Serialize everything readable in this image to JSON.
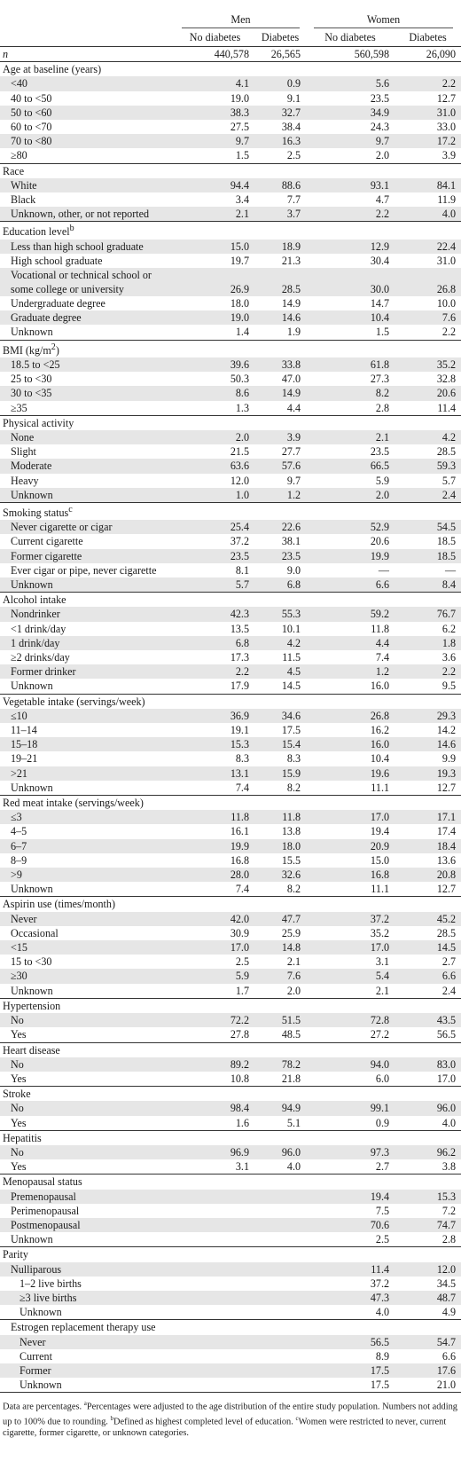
{
  "headers": {
    "groups": [
      "Men",
      "Women"
    ],
    "columns": [
      "No diabetes",
      "Diabetes",
      "No diabetes",
      "Diabetes"
    ]
  },
  "n_row": {
    "label": "n",
    "values": [
      "440,578",
      "26,565",
      "560,598",
      "26,090"
    ]
  },
  "sections": [
    {
      "title": "Age at baseline (years)",
      "sup": "",
      "rows": [
        {
          "label": "<40",
          "values": [
            "4.1",
            "0.9",
            "5.6",
            "2.2"
          ]
        },
        {
          "label": "40 to <50",
          "values": [
            "19.0",
            "9.1",
            "23.5",
            "12.7"
          ]
        },
        {
          "label": "50 to <60",
          "values": [
            "38.3",
            "32.7",
            "34.9",
            "31.0"
          ]
        },
        {
          "label": "60 to <70",
          "values": [
            "27.5",
            "38.4",
            "24.3",
            "33.0"
          ]
        },
        {
          "label": "70 to <80",
          "values": [
            "9.7",
            "16.3",
            "9.7",
            "17.2"
          ]
        },
        {
          "label": "≥80",
          "values": [
            "1.5",
            "2.5",
            "2.0",
            "3.9"
          ]
        }
      ]
    },
    {
      "title": "Race",
      "sup": "",
      "rows": [
        {
          "label": "White",
          "values": [
            "94.4",
            "88.6",
            "93.1",
            "84.1"
          ]
        },
        {
          "label": "Black",
          "values": [
            "3.4",
            "7.7",
            "4.7",
            "11.9"
          ]
        },
        {
          "label": "Unknown, other, or not reported",
          "values": [
            "2.1",
            "3.7",
            "2.2",
            "4.0"
          ]
        }
      ]
    },
    {
      "title": "Education level",
      "sup": "b",
      "rows": [
        {
          "label": "Less than high school graduate",
          "values": [
            "15.0",
            "18.9",
            "12.9",
            "22.4"
          ]
        },
        {
          "label": "High school graduate",
          "values": [
            "19.7",
            "21.3",
            "30.4",
            "31.0"
          ]
        },
        {
          "label": "Vocational or technical school or some college or university",
          "wrap": true,
          "values": [
            "26.9",
            "28.5",
            "30.0",
            "26.8"
          ]
        },
        {
          "label": "Undergraduate degree",
          "values": [
            "18.0",
            "14.9",
            "14.7",
            "10.0"
          ]
        },
        {
          "label": "Graduate degree",
          "values": [
            "19.0",
            "14.6",
            "10.4",
            "7.6"
          ]
        },
        {
          "label": "Unknown",
          "values": [
            "1.4",
            "1.9",
            "1.5",
            "2.2"
          ]
        }
      ]
    },
    {
      "title": "BMI (kg/m",
      "title_sup": "2",
      "title_end": ")",
      "sup": "",
      "rows": [
        {
          "label": "18.5 to <25",
          "values": [
            "39.6",
            "33.8",
            "61.8",
            "35.2"
          ]
        },
        {
          "label": "25 to <30",
          "values": [
            "50.3",
            "47.0",
            "27.3",
            "32.8"
          ]
        },
        {
          "label": "30 to <35",
          "values": [
            "8.6",
            "14.9",
            "8.2",
            "20.6"
          ]
        },
        {
          "label": "≥35",
          "values": [
            "1.3",
            "4.4",
            "2.8",
            "11.4"
          ]
        }
      ]
    },
    {
      "title": "Physical activity",
      "sup": "",
      "rows": [
        {
          "label": "None",
          "values": [
            "2.0",
            "3.9",
            "2.1",
            "4.2"
          ]
        },
        {
          "label": "Slight",
          "values": [
            "21.5",
            "27.7",
            "23.5",
            "28.5"
          ]
        },
        {
          "label": "Moderate",
          "values": [
            "63.6",
            "57.6",
            "66.5",
            "59.3"
          ]
        },
        {
          "label": "Heavy",
          "values": [
            "12.0",
            "9.7",
            "5.9",
            "5.7"
          ]
        },
        {
          "label": "Unknown",
          "values": [
            "1.0",
            "1.2",
            "2.0",
            "2.4"
          ]
        }
      ]
    },
    {
      "title": "Smoking status",
      "sup": "c",
      "rows": [
        {
          "label": "Never cigarette or cigar",
          "values": [
            "25.4",
            "22.6",
            "52.9",
            "54.5"
          ]
        },
        {
          "label": "Current cigarette",
          "values": [
            "37.2",
            "38.1",
            "20.6",
            "18.5"
          ]
        },
        {
          "label": "Former cigarette",
          "values": [
            "23.5",
            "23.5",
            "19.9",
            "18.5"
          ]
        },
        {
          "label": "Ever cigar or pipe, never cigarette",
          "values": [
            "8.1",
            "9.0",
            "—",
            "—"
          ]
        },
        {
          "label": "Unknown",
          "values": [
            "5.7",
            "6.8",
            "6.6",
            "8.4"
          ]
        }
      ]
    },
    {
      "title": "Alcohol intake",
      "sup": "",
      "rows": [
        {
          "label": "Nondrinker",
          "values": [
            "42.3",
            "55.3",
            "59.2",
            "76.7"
          ]
        },
        {
          "label": "<1 drink/day",
          "values": [
            "13.5",
            "10.1",
            "11.8",
            "6.2"
          ]
        },
        {
          "label": "1 drink/day",
          "values": [
            "6.8",
            "4.2",
            "4.4",
            "1.8"
          ]
        },
        {
          "label": "≥2 drinks/day",
          "values": [
            "17.3",
            "11.5",
            "7.4",
            "3.6"
          ]
        },
        {
          "label": "Former drinker",
          "values": [
            "2.2",
            "4.5",
            "1.2",
            "2.2"
          ]
        },
        {
          "label": "Unknown",
          "values": [
            "17.9",
            "14.5",
            "16.0",
            "9.5"
          ]
        }
      ]
    },
    {
      "title": "Vegetable intake (servings/week)",
      "sup": "",
      "rows": [
        {
          "label": "≤10",
          "values": [
            "36.9",
            "34.6",
            "26.8",
            "29.3"
          ]
        },
        {
          "label": "11–14",
          "values": [
            "19.1",
            "17.5",
            "16.2",
            "14.2"
          ]
        },
        {
          "label": "15–18",
          "values": [
            "15.3",
            "15.4",
            "16.0",
            "14.6"
          ]
        },
        {
          "label": "19–21",
          "values": [
            "8.3",
            "8.3",
            "10.4",
            "9.9"
          ]
        },
        {
          "label": ">21",
          "values": [
            "13.1",
            "15.9",
            "19.6",
            "19.3"
          ]
        },
        {
          "label": "Unknown",
          "values": [
            "7.4",
            "8.2",
            "11.1",
            "12.7"
          ]
        }
      ]
    },
    {
      "title": "Red meat intake (servings/week)",
      "sup": "",
      "rows": [
        {
          "label": "≤3",
          "values": [
            "11.8",
            "11.8",
            "17.0",
            "17.1"
          ]
        },
        {
          "label": "4–5",
          "values": [
            "16.1",
            "13.8",
            "19.4",
            "17.4"
          ]
        },
        {
          "label": "6–7",
          "values": [
            "19.9",
            "18.0",
            "20.9",
            "18.4"
          ]
        },
        {
          "label": "8–9",
          "values": [
            "16.8",
            "15.5",
            "15.0",
            "13.6"
          ]
        },
        {
          "label": ">9",
          "values": [
            "28.0",
            "32.6",
            "16.8",
            "20.8"
          ]
        },
        {
          "label": "Unknown",
          "values": [
            "7.4",
            "8.2",
            "11.1",
            "12.7"
          ]
        }
      ]
    },
    {
      "title": "Aspirin use (times/month)",
      "sup": "",
      "rows": [
        {
          "label": "Never",
          "values": [
            "42.0",
            "47.7",
            "37.2",
            "45.2"
          ]
        },
        {
          "label": "Occasional",
          "values": [
            "30.9",
            "25.9",
            "35.2",
            "28.5"
          ]
        },
        {
          "label": "<15",
          "values": [
            "17.0",
            "14.8",
            "17.0",
            "14.5"
          ]
        },
        {
          "label": "15 to <30",
          "values": [
            "2.5",
            "2.1",
            "3.1",
            "2.7"
          ]
        },
        {
          "label": "≥30",
          "values": [
            "5.9",
            "7.6",
            "5.4",
            "6.6"
          ]
        },
        {
          "label": "Unknown",
          "values": [
            "1.7",
            "2.0",
            "2.1",
            "2.4"
          ]
        }
      ]
    },
    {
      "title": "Hypertension",
      "sup": "",
      "rows": [
        {
          "label": "No",
          "values": [
            "72.2",
            "51.5",
            "72.8",
            "43.5"
          ]
        },
        {
          "label": "Yes",
          "values": [
            "27.8",
            "48.5",
            "27.2",
            "56.5"
          ]
        }
      ]
    },
    {
      "title": "Heart disease",
      "sup": "",
      "rows": [
        {
          "label": "No",
          "values": [
            "89.2",
            "78.2",
            "94.0",
            "83.0"
          ]
        },
        {
          "label": "Yes",
          "values": [
            "10.8",
            "21.8",
            "6.0",
            "17.0"
          ]
        }
      ]
    },
    {
      "title": "Stroke",
      "sup": "",
      "rows": [
        {
          "label": "No",
          "values": [
            "98.4",
            "94.9",
            "99.1",
            "96.0"
          ]
        },
        {
          "label": "Yes",
          "values": [
            "1.6",
            "5.1",
            "0.9",
            "4.0"
          ]
        }
      ]
    },
    {
      "title": "Hepatitis",
      "sup": "",
      "rows": [
        {
          "label": "No",
          "values": [
            "96.9",
            "96.0",
            "97.3",
            "96.2"
          ]
        },
        {
          "label": "Yes",
          "values": [
            "3.1",
            "4.0",
            "2.7",
            "3.8"
          ]
        }
      ]
    },
    {
      "title": "Menopausal status",
      "sup": "",
      "rows": [
        {
          "label": "Premenopausal",
          "values": [
            "",
            "",
            "19.4",
            "15.3"
          ]
        },
        {
          "label": "Perimenopausal",
          "values": [
            "",
            "",
            "7.5",
            "7.2"
          ]
        },
        {
          "label": "Postmenopausal",
          "values": [
            "",
            "",
            "70.6",
            "74.7"
          ]
        },
        {
          "label": "Unknown",
          "values": [
            "",
            "",
            "2.5",
            "2.8"
          ]
        }
      ]
    },
    {
      "title": "Parity",
      "sup": "",
      "rows": [
        {
          "label": "Nulliparous",
          "values": [
            "",
            "",
            "11.4",
            "12.0"
          ]
        },
        {
          "label": "1–2 live births",
          "indent2": true,
          "values": [
            "",
            "",
            "37.2",
            "34.5"
          ]
        },
        {
          "label": "≥3 live births",
          "indent2": true,
          "values": [
            "",
            "",
            "47.3",
            "48.7"
          ]
        },
        {
          "label": "Unknown",
          "indent2": true,
          "values": [
            "",
            "",
            "4.0",
            "4.9"
          ]
        }
      ]
    },
    {
      "title": "Estrogen replacement therapy use",
      "sup": "",
      "indent_title": true,
      "rows": [
        {
          "label": "Never",
          "indent2": true,
          "values": [
            "",
            "",
            "56.5",
            "54.7"
          ]
        },
        {
          "label": "Current",
          "indent2": true,
          "values": [
            "",
            "",
            "8.9",
            "6.6"
          ]
        },
        {
          "label": "Former",
          "indent2": true,
          "values": [
            "",
            "",
            "17.5",
            "17.6"
          ]
        },
        {
          "label": "Unknown",
          "indent2": true,
          "values": [
            "",
            "",
            "17.5",
            "21.0"
          ]
        }
      ]
    }
  ],
  "footnote": {
    "p1": "Data are percentages. ",
    "a_mark": "a",
    "a_text": "Percentages were adjusted to the age distribution of the entire study population. Numbers not adding up to 100% due to rounding. ",
    "b_mark": "b",
    "b_text": "Defined as highest completed level of education. ",
    "c_mark": "c",
    "c_text": "Women were restricted to never, current cigarette, former cigarette, or unknown categories."
  },
  "colors": {
    "shade": "#e6e6e6",
    "text": "#1a1a1a"
  }
}
